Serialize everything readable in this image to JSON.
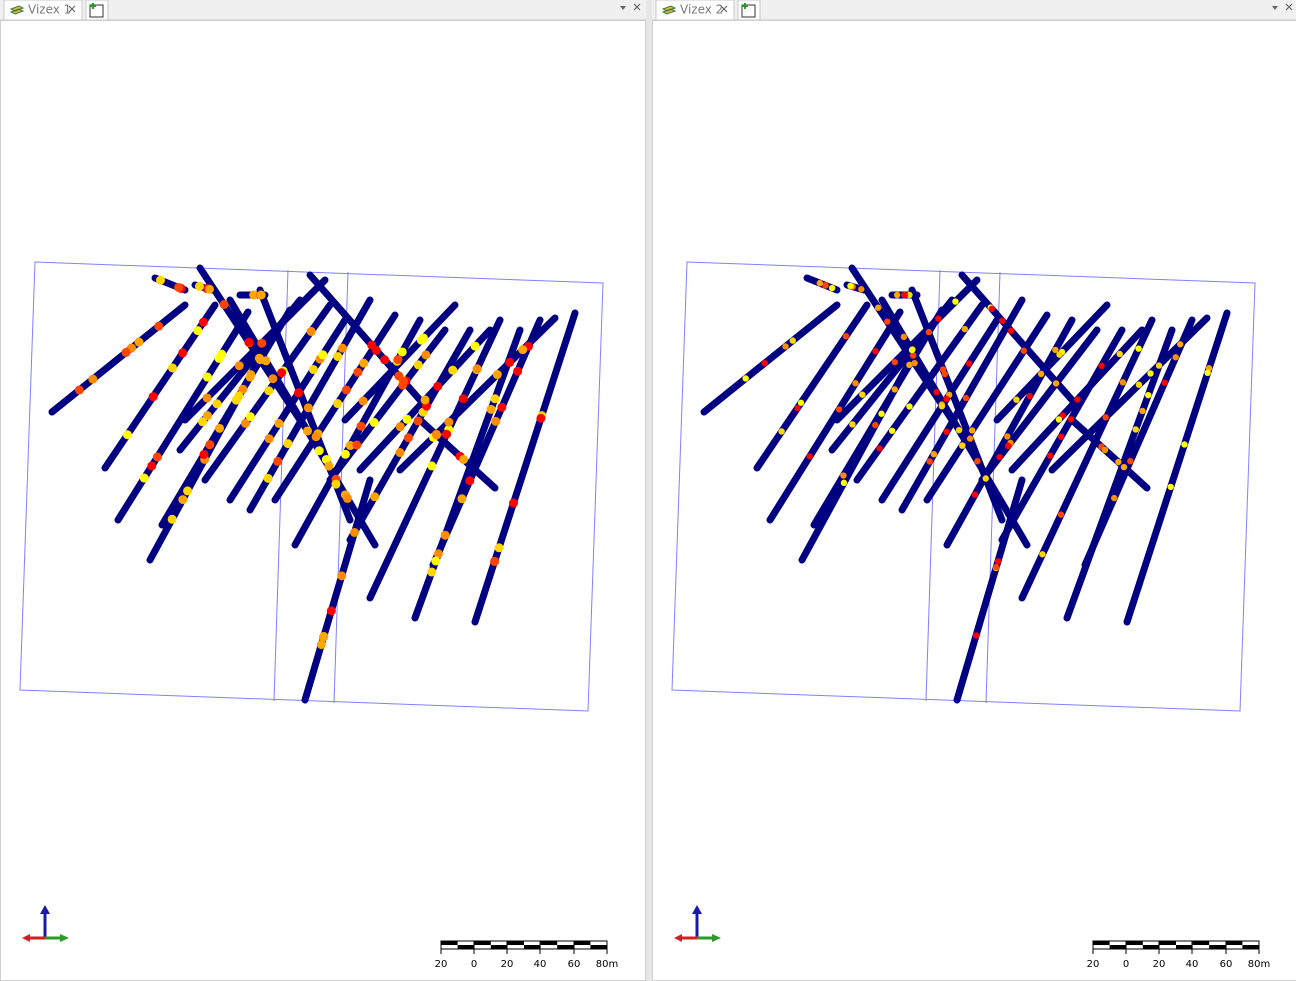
{
  "panels": [
    {
      "tab": "Vizex 1",
      "scale_labels": [
        "20",
        "0",
        "20",
        "40",
        "60",
        "80m"
      ]
    },
    {
      "tab": "Vizex 2",
      "scale_labels": [
        "20",
        "0",
        "20",
        "40",
        "60",
        "80m"
      ]
    }
  ]
}
